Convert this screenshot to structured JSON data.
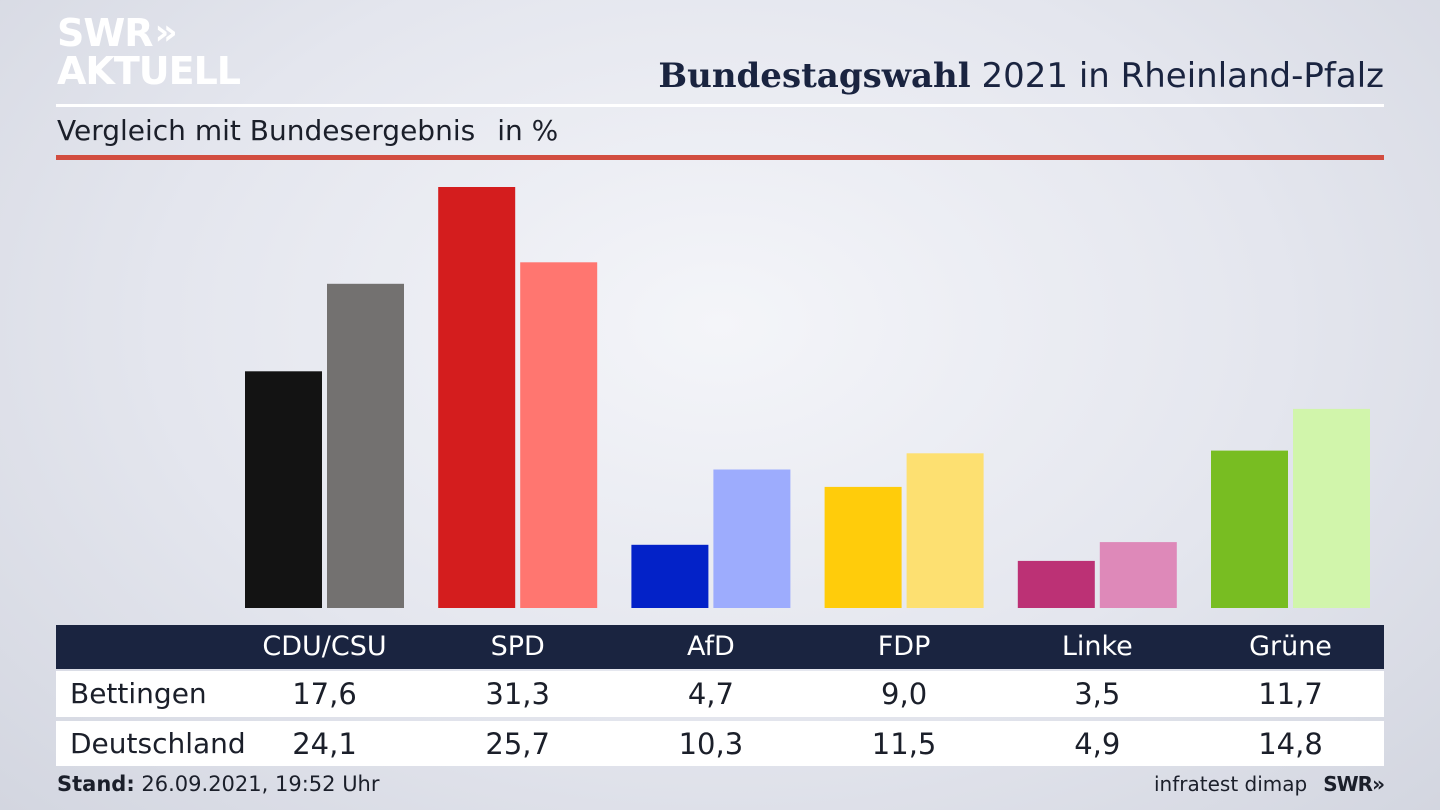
{
  "brand": {
    "line1": "SWR",
    "line2": "AKTUELL",
    "chevrons": "»"
  },
  "header": {
    "title_bold": "Bundestagswahl",
    "title_rest": "2021 in Rheinland-Pfalz"
  },
  "subtitle": {
    "text": "Vergleich mit Bundesergebnis",
    "unit": "in %"
  },
  "chart_data": {
    "type": "bar",
    "title": "Bundestagswahl 2021 in Rheinland-Pfalz",
    "subtitle": "Vergleich mit Bundesergebnis in %",
    "categories": [
      "CDU/CSU",
      "SPD",
      "AfD",
      "FDP",
      "Linke",
      "Grüne"
    ],
    "series": [
      {
        "name": "Bettingen",
        "values": [
          17.6,
          31.3,
          4.7,
          9.0,
          3.5,
          11.7
        ],
        "labels": [
          "17,6",
          "31,3",
          "4,7",
          "9,0",
          "3,5",
          "11,7"
        ]
      },
      {
        "name": "Deutschland",
        "values": [
          24.1,
          25.7,
          10.3,
          11.5,
          4.9,
          14.8
        ],
        "labels": [
          "24,1",
          "25,7",
          "10,3",
          "11,5",
          "4,9",
          "14,8"
        ]
      }
    ],
    "colors": {
      "Bettingen": [
        "#131313",
        "#d41d1e",
        "#0322c8",
        "#ffcc0b",
        "#bc3175",
        "#78bd22"
      ],
      "Deutschland": [
        "#737170",
        "#ff7670",
        "#9dacfd",
        "#fde071",
        "#de89b9",
        "#d1f5ab"
      ]
    },
    "ylim": [
      0,
      31.3
    ],
    "grid": false,
    "legend": "table-below"
  },
  "footer": {
    "stand_label": "Stand:",
    "stand_value": "26.09.2021, 19:52 Uhr",
    "source": "infratest dimap",
    "brand": "SWR»"
  }
}
